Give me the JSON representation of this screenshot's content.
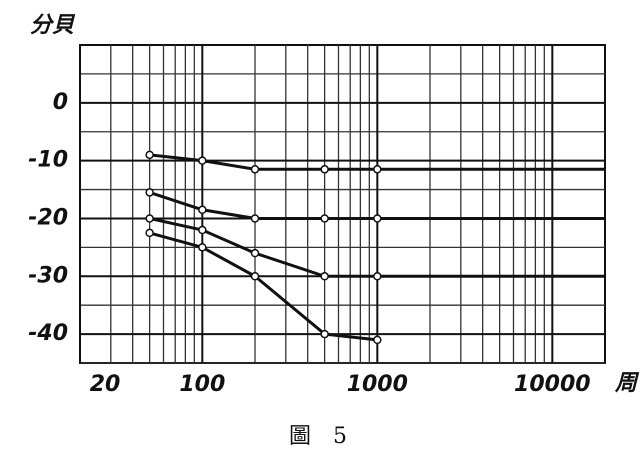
{
  "chart_data": {
    "type": "line",
    "y_label": "分貝",
    "x_label": "周",
    "caption": "圖　5",
    "log_x": true,
    "grid": true,
    "minor_grid": true,
    "color": "#111",
    "xlim": [
      20,
      20000
    ],
    "xticks": [
      20,
      100,
      1000,
      10000
    ],
    "ylim": [
      -45,
      10
    ],
    "yticks": [
      0,
      -10,
      -20,
      -30,
      -40
    ],
    "series": [
      {
        "x": [
          50,
          100,
          200,
          500,
          1000,
          20000
        ],
        "values": [
          -9,
          -10,
          -11.5,
          -11.5,
          -11.5,
          -11.5
        ]
      },
      {
        "x": [
          50,
          100,
          200,
          500,
          1000,
          20000
        ],
        "values": [
          -15.5,
          -18.5,
          -20,
          -20,
          -20,
          -20
        ]
      },
      {
        "x": [
          50,
          100,
          200,
          500,
          1000,
          20000
        ],
        "values": [
          -20,
          -22,
          -26,
          -30,
          -30,
          -30
        ]
      },
      {
        "x": [
          50,
          100,
          200,
          500,
          1000
        ],
        "values": [
          -22.5,
          -25,
          -30,
          -40,
          -41
        ]
      }
    ]
  }
}
